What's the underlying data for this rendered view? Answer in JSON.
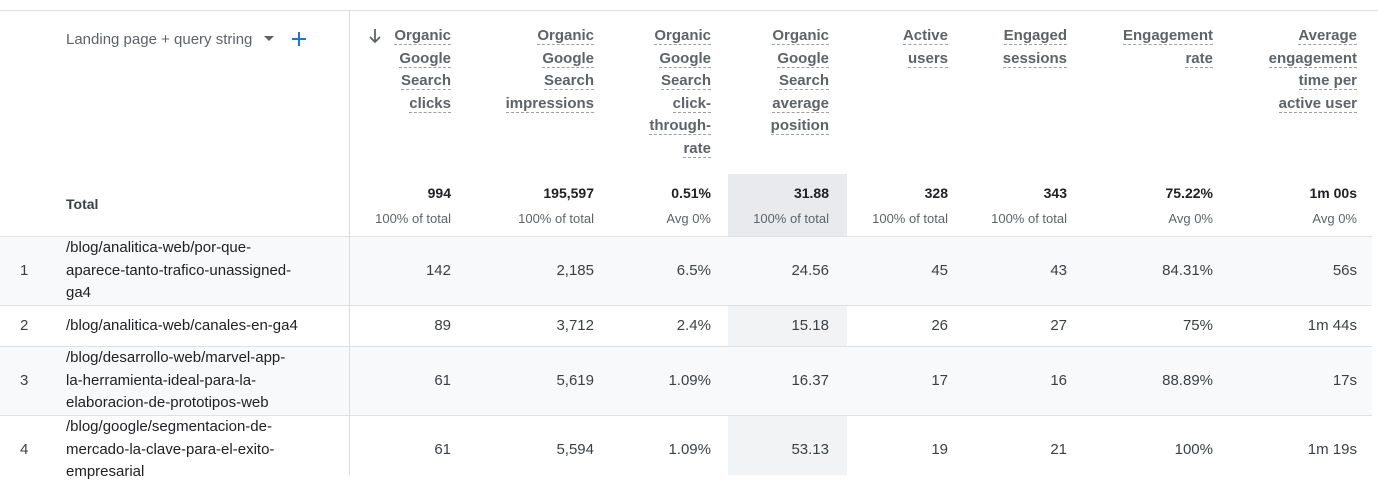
{
  "dimension": {
    "label": "Landing page + query string"
  },
  "headers": [
    {
      "lines": [
        "Organic",
        "Google",
        "Search",
        "clicks"
      ]
    },
    {
      "lines": [
        "Organic",
        "Google",
        "Search",
        "impressions"
      ]
    },
    {
      "lines": [
        "Organic",
        "Google",
        "Search",
        "click-",
        "through-",
        "rate"
      ]
    },
    {
      "lines": [
        "Organic",
        "Google",
        "Search",
        "average",
        "position"
      ]
    },
    {
      "lines": [
        "Active",
        "users"
      ]
    },
    {
      "lines": [
        "Engaged",
        "sessions"
      ]
    },
    {
      "lines": [
        "Engagement",
        "rate"
      ]
    },
    {
      "lines": [
        "Average",
        "engagement",
        "time per",
        "active user"
      ]
    }
  ],
  "total": {
    "label": "Total",
    "values": [
      "994",
      "195,597",
      "0.51%",
      "31.88",
      "328",
      "343",
      "75.22%",
      "1m 00s"
    ],
    "subs": [
      "100% of total",
      "100% of total",
      "Avg 0%",
      "100% of total",
      "100% of total",
      "100% of total",
      "Avg 0%",
      "Avg 0%"
    ]
  },
  "rows": [
    {
      "index": "1",
      "page_lines": [
        "/blog/analitica-web/por-que-",
        "aparece-tanto-trafico-unassigned-",
        "ga4"
      ],
      "values": [
        "142",
        "2,185",
        "6.5%",
        "24.56",
        "45",
        "43",
        "84.31%",
        "56s"
      ]
    },
    {
      "index": "2",
      "page_lines": [
        "/blog/analitica-web/canales-en-ga4"
      ],
      "values": [
        "89",
        "3,712",
        "2.4%",
        "15.18",
        "26",
        "27",
        "75%",
        "1m 44s"
      ]
    },
    {
      "index": "3",
      "page_lines": [
        "/blog/desarrollo-web/marvel-app-",
        "la-herramienta-ideal-para-la-",
        "elaboracion-de-prototipos-web"
      ],
      "values": [
        "61",
        "5,619",
        "1.09%",
        "16.37",
        "17",
        "16",
        "88.89%",
        "17s"
      ]
    },
    {
      "index": "4",
      "page_lines": [
        "/blog/google/segmentacion-de-",
        "mercado-la-clave-para-el-exito-",
        "empresarial"
      ],
      "values": [
        "61",
        "5,594",
        "1.09%",
        "53.13",
        "19",
        "21",
        "100%",
        "1m 19s"
      ]
    }
  ]
}
